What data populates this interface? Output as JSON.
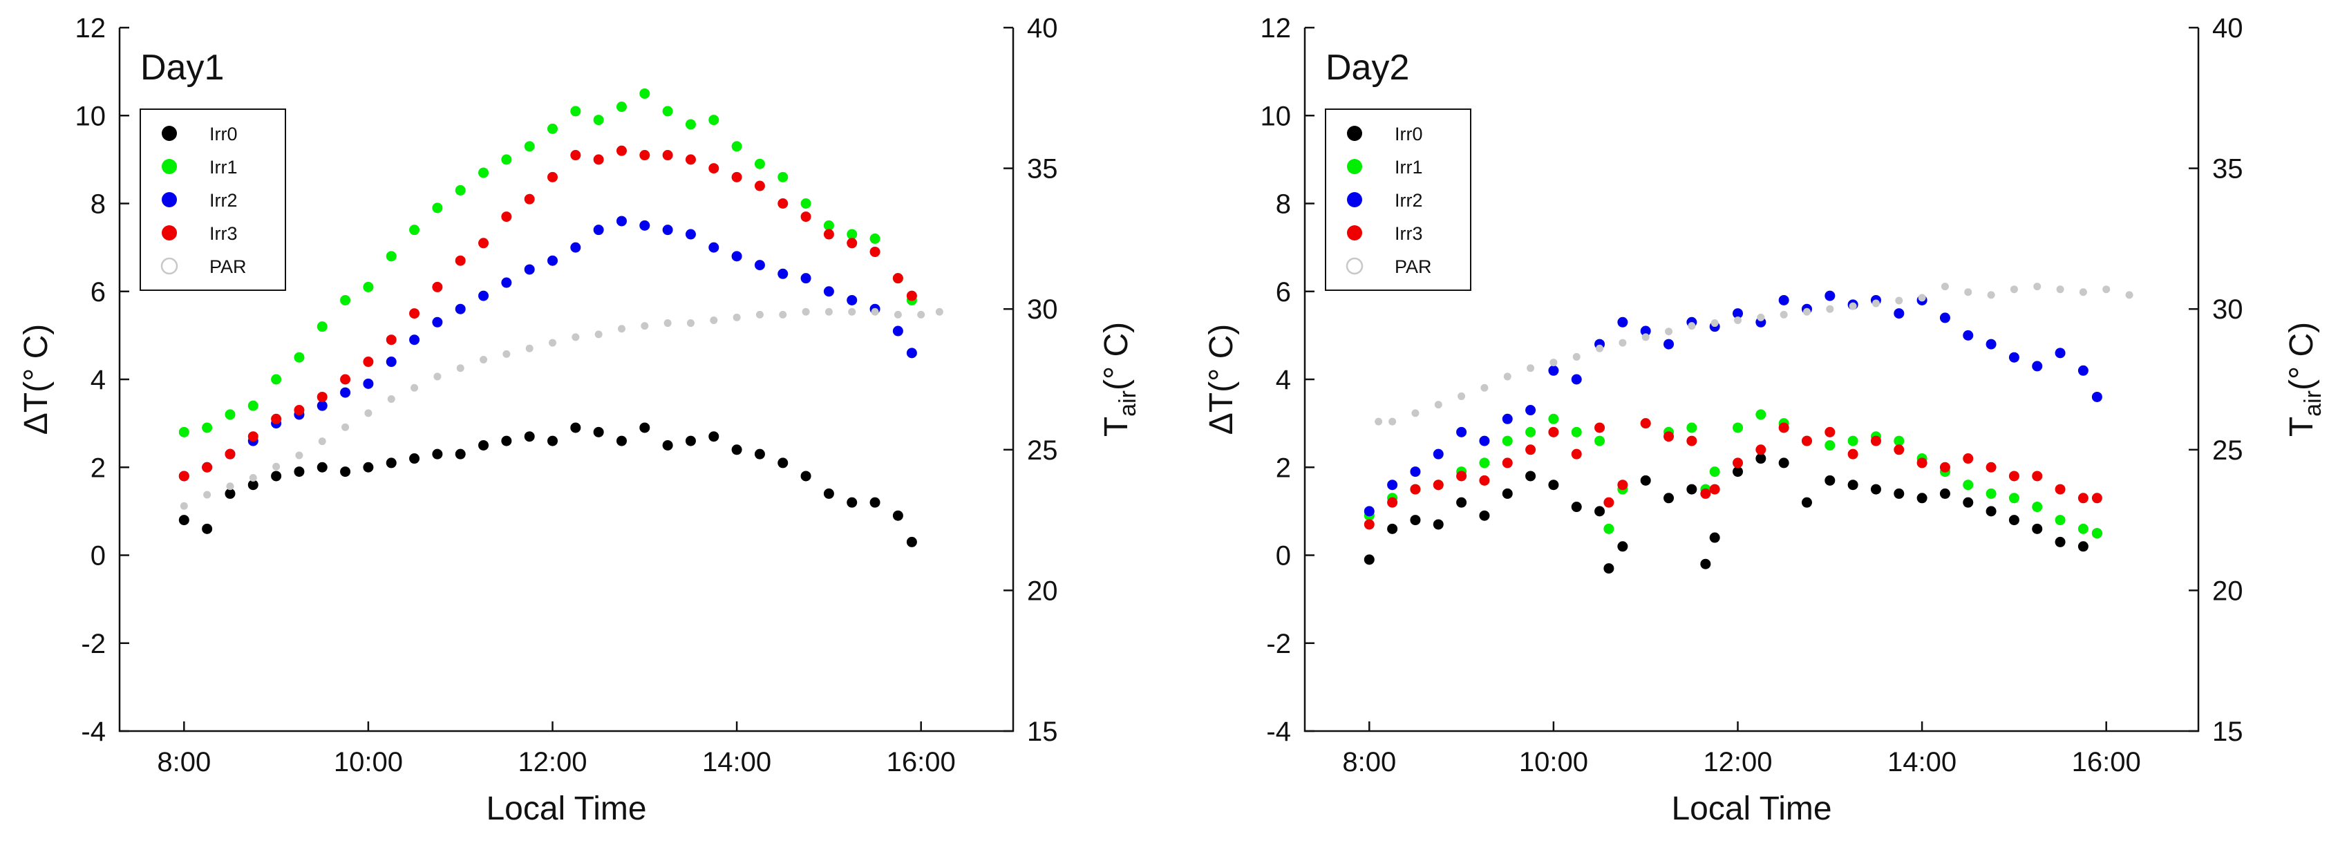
{
  "figure": {
    "xlabel": "Local Time",
    "ylabel_left": "ΔT(° C)",
    "ylabel_right": "Tair(° C)",
    "ylabel_right_base": "T",
    "ylabel_right_sub": "air",
    "ylabel_right_tail": "(° C)"
  },
  "chart_data": [
    {
      "type": "scatter",
      "title": "Day1",
      "xlabel": "Local Time",
      "ylabel": "ΔT(° C)",
      "ylabel_right": "Tair(° C)",
      "x_unit": "hours (local time)",
      "xlim": [
        7.3,
        17.0
      ],
      "ylim": [
        -4,
        12
      ],
      "ylim_right": [
        15,
        40
      ],
      "x_ticks": [
        8,
        10,
        12,
        14,
        16
      ],
      "x_tick_labels": [
        "8:00",
        "10:00",
        "12:00",
        "14:00",
        "16:00"
      ],
      "y_ticks": [
        -4,
        -2,
        0,
        2,
        4,
        6,
        8,
        10,
        12
      ],
      "y_tick_labels": [
        "-4",
        "-2",
        "0",
        "2",
        "4",
        "6",
        "8",
        "10",
        "12"
      ],
      "y_right_ticks": [
        15,
        20,
        25,
        30,
        35,
        40
      ],
      "y_right_tick_labels": [
        "15",
        "20",
        "25",
        "30",
        "35",
        "40"
      ],
      "legend_placement": "top-left",
      "grid": false,
      "series": [
        {
          "name": "Irr0",
          "color": "#000000",
          "axis": "left",
          "x": [
            8.0,
            8.25,
            8.5,
            8.75,
            9.0,
            9.25,
            9.5,
            9.75,
            10.0,
            10.25,
            10.5,
            10.75,
            11.0,
            11.25,
            11.5,
            11.75,
            12.0,
            12.25,
            12.5,
            12.75,
            13.0,
            13.25,
            13.5,
            13.75,
            14.0,
            14.25,
            14.5,
            14.75,
            15.0,
            15.25,
            15.5,
            15.75,
            15.9
          ],
          "y": [
            0.8,
            0.6,
            1.4,
            1.6,
            1.8,
            1.9,
            2.0,
            1.9,
            2.0,
            2.1,
            2.2,
            2.3,
            2.3,
            2.5,
            2.6,
            2.7,
            2.6,
            2.9,
            2.8,
            2.6,
            2.9,
            2.5,
            2.6,
            2.7,
            2.4,
            2.3,
            2.1,
            1.8,
            1.4,
            1.2,
            1.2,
            0.9,
            0.3
          ]
        },
        {
          "name": "Irr1",
          "color": "#00ee00",
          "axis": "left",
          "x": [
            8.0,
            8.25,
            8.5,
            8.75,
            9.0,
            9.25,
            9.5,
            9.75,
            10.0,
            10.25,
            10.5,
            10.75,
            11.0,
            11.25,
            11.5,
            11.75,
            12.0,
            12.25,
            12.5,
            12.75,
            13.0,
            13.25,
            13.5,
            13.75,
            14.0,
            14.25,
            14.5,
            14.75,
            15.0,
            15.25,
            15.5,
            15.75,
            15.9
          ],
          "y": [
            2.8,
            2.9,
            3.2,
            3.4,
            4.0,
            4.5,
            5.2,
            5.8,
            6.1,
            6.8,
            7.4,
            7.9,
            8.3,
            8.7,
            9.0,
            9.3,
            9.7,
            10.1,
            9.9,
            10.2,
            10.5,
            10.1,
            9.8,
            9.9,
            9.3,
            8.9,
            8.6,
            8.0,
            7.5,
            7.3,
            7.2,
            6.3,
            5.8
          ]
        },
        {
          "name": "Irr2",
          "color": "#0000ee",
          "axis": "left",
          "x": [
            8.0,
            8.25,
            8.5,
            8.75,
            9.0,
            9.25,
            9.5,
            9.75,
            10.0,
            10.25,
            10.5,
            10.75,
            11.0,
            11.25,
            11.5,
            11.75,
            12.0,
            12.25,
            12.5,
            12.75,
            13.0,
            13.25,
            13.5,
            13.75,
            14.0,
            14.25,
            14.5,
            14.75,
            15.0,
            15.25,
            15.5,
            15.75,
            15.9
          ],
          "y": [
            1.8,
            2.0,
            2.3,
            2.6,
            3.0,
            3.2,
            3.4,
            3.7,
            3.9,
            4.4,
            4.9,
            5.3,
            5.6,
            5.9,
            6.2,
            6.5,
            6.7,
            7.0,
            7.4,
            7.6,
            7.5,
            7.4,
            7.3,
            7.0,
            6.8,
            6.6,
            6.4,
            6.3,
            6.0,
            5.8,
            5.6,
            5.1,
            4.6
          ]
        },
        {
          "name": "Irr3",
          "color": "#ee0000",
          "axis": "left",
          "x": [
            8.0,
            8.25,
            8.5,
            8.75,
            9.0,
            9.25,
            9.5,
            9.75,
            10.0,
            10.25,
            10.5,
            10.75,
            11.0,
            11.25,
            11.5,
            11.75,
            12.0,
            12.25,
            12.5,
            12.75,
            13.0,
            13.25,
            13.5,
            13.75,
            14.0,
            14.25,
            14.5,
            14.75,
            15.0,
            15.25,
            15.5,
            15.75,
            15.9
          ],
          "y": [
            1.8,
            2.0,
            2.3,
            2.7,
            3.1,
            3.3,
            3.6,
            4.0,
            4.4,
            4.9,
            5.5,
            6.1,
            6.7,
            7.1,
            7.7,
            8.1,
            8.6,
            9.1,
            9.0,
            9.2,
            9.1,
            9.1,
            9.0,
            8.8,
            8.6,
            8.4,
            8.0,
            7.7,
            7.3,
            7.1,
            6.9,
            6.3,
            5.9
          ]
        },
        {
          "name": "PAR",
          "color": "#c8c8c8",
          "axis": "right",
          "x": [
            8.0,
            8.25,
            8.5,
            8.75,
            9.0,
            9.25,
            9.5,
            9.75,
            10.0,
            10.25,
            10.5,
            10.75,
            11.0,
            11.25,
            11.5,
            11.75,
            12.0,
            12.25,
            12.5,
            12.75,
            13.0,
            13.25,
            13.5,
            13.75,
            14.0,
            14.25,
            14.5,
            14.75,
            15.0,
            15.25,
            15.5,
            15.75,
            16.0,
            16.2
          ],
          "y": [
            23.0,
            23.4,
            23.7,
            24.0,
            24.4,
            24.8,
            25.3,
            25.8,
            26.3,
            26.8,
            27.2,
            27.6,
            27.9,
            28.2,
            28.4,
            28.6,
            28.8,
            29.0,
            29.1,
            29.3,
            29.4,
            29.5,
            29.5,
            29.6,
            29.7,
            29.8,
            29.8,
            29.9,
            29.9,
            29.9,
            29.9,
            29.8,
            29.8,
            29.9
          ]
        }
      ]
    },
    {
      "type": "scatter",
      "title": "Day2",
      "xlabel": "Local Time",
      "ylabel": "ΔT(° C)",
      "ylabel_right": "Tair(° C)",
      "x_unit": "hours (local time)",
      "xlim": [
        7.3,
        17.0
      ],
      "ylim": [
        -4,
        12
      ],
      "ylim_right": [
        15,
        40
      ],
      "x_ticks": [
        8,
        10,
        12,
        14,
        16
      ],
      "x_tick_labels": [
        "8:00",
        "10:00",
        "12:00",
        "14:00",
        "16:00"
      ],
      "y_ticks": [
        -4,
        -2,
        0,
        2,
        4,
        6,
        8,
        10,
        12
      ],
      "y_tick_labels": [
        "-4",
        "-2",
        "0",
        "2",
        "4",
        "6",
        "8",
        "10",
        "12"
      ],
      "y_right_ticks": [
        15,
        20,
        25,
        30,
        35,
        40
      ],
      "y_right_tick_labels": [
        "15",
        "20",
        "25",
        "30",
        "35",
        "40"
      ],
      "legend_placement": "top-left",
      "grid": false,
      "series": [
        {
          "name": "Irr0",
          "color": "#000000",
          "axis": "left",
          "x": [
            8.0,
            8.25,
            8.5,
            8.75,
            9.0,
            9.25,
            9.5,
            9.75,
            10.0,
            10.25,
            10.5,
            10.6,
            10.75,
            11.0,
            11.25,
            11.5,
            11.65,
            11.75,
            12.0,
            12.25,
            12.5,
            12.75,
            13.0,
            13.25,
            13.5,
            13.75,
            14.0,
            14.25,
            14.5,
            14.75,
            15.0,
            15.25,
            15.5,
            15.75,
            15.9
          ],
          "y": [
            -0.1,
            0.6,
            0.8,
            0.7,
            1.2,
            0.9,
            1.4,
            1.8,
            1.6,
            1.1,
            1.0,
            -0.3,
            0.2,
            1.7,
            1.3,
            1.5,
            -0.2,
            0.4,
            1.9,
            2.2,
            2.1,
            1.2,
            1.7,
            1.6,
            1.5,
            1.4,
            1.3,
            1.4,
            1.2,
            1.0,
            0.8,
            0.6,
            0.3,
            0.2,
            0.5
          ]
        },
        {
          "name": "Irr1",
          "color": "#00ee00",
          "axis": "left",
          "x": [
            8.0,
            8.25,
            8.5,
            8.75,
            9.0,
            9.25,
            9.5,
            9.75,
            10.0,
            10.25,
            10.5,
            10.6,
            10.75,
            11.0,
            11.25,
            11.5,
            11.65,
            11.75,
            12.0,
            12.25,
            12.5,
            12.75,
            13.0,
            13.25,
            13.5,
            13.75,
            14.0,
            14.25,
            14.5,
            14.75,
            15.0,
            15.25,
            15.5,
            15.75,
            15.9
          ],
          "y": [
            0.9,
            1.3,
            1.5,
            1.6,
            1.9,
            2.1,
            2.6,
            2.8,
            3.1,
            2.8,
            2.6,
            0.6,
            1.5,
            3.0,
            2.8,
            2.9,
            1.5,
            1.9,
            2.9,
            3.2,
            3.0,
            2.6,
            2.5,
            2.6,
            2.7,
            2.6,
            2.2,
            1.9,
            1.6,
            1.4,
            1.3,
            1.1,
            0.8,
            0.6,
            0.5
          ]
        },
        {
          "name": "Irr2",
          "color": "#0000ee",
          "axis": "left",
          "x": [
            8.0,
            8.25,
            8.5,
            8.75,
            9.0,
            9.25,
            9.5,
            9.75,
            10.0,
            10.25,
            10.5,
            10.75,
            11.0,
            11.25,
            11.5,
            11.75,
            12.0,
            12.25,
            12.5,
            12.75,
            13.0,
            13.25,
            13.5,
            13.75,
            14.0,
            14.25,
            14.5,
            14.75,
            15.0,
            15.25,
            15.5,
            15.75,
            15.9
          ],
          "y": [
            1.0,
            1.6,
            1.9,
            2.3,
            2.8,
            2.6,
            3.1,
            3.3,
            4.2,
            4.0,
            4.8,
            5.3,
            5.1,
            4.8,
            5.3,
            5.2,
            5.5,
            5.3,
            5.8,
            5.6,
            5.9,
            5.7,
            5.8,
            5.5,
            5.8,
            5.4,
            5.0,
            4.8,
            4.5,
            4.3,
            4.6,
            4.2,
            3.6
          ]
        },
        {
          "name": "Irr3",
          "color": "#ee0000",
          "axis": "left",
          "x": [
            8.0,
            8.25,
            8.5,
            8.75,
            9.0,
            9.25,
            9.5,
            9.75,
            10.0,
            10.25,
            10.5,
            10.6,
            10.75,
            11.0,
            11.25,
            11.5,
            11.65,
            11.75,
            12.0,
            12.25,
            12.5,
            12.75,
            13.0,
            13.25,
            13.5,
            13.75,
            14.0,
            14.25,
            14.5,
            14.75,
            15.0,
            15.25,
            15.5,
            15.75,
            15.9
          ],
          "y": [
            0.7,
            1.2,
            1.5,
            1.6,
            1.8,
            1.7,
            2.1,
            2.4,
            2.8,
            2.3,
            2.9,
            1.2,
            1.6,
            3.0,
            2.7,
            2.6,
            1.4,
            1.5,
            2.1,
            2.4,
            2.9,
            2.6,
            2.8,
            2.3,
            2.6,
            2.4,
            2.1,
            2.0,
            2.2,
            2.0,
            1.8,
            1.8,
            1.5,
            1.3,
            1.3
          ]
        },
        {
          "name": "PAR",
          "color": "#c8c8c8",
          "axis": "right",
          "x": [
            8.1,
            8.25,
            8.5,
            8.75,
            9.0,
            9.25,
            9.5,
            9.75,
            10.0,
            10.25,
            10.5,
            10.75,
            11.0,
            11.25,
            11.5,
            11.75,
            12.0,
            12.25,
            12.5,
            12.75,
            13.0,
            13.25,
            13.5,
            13.75,
            14.0,
            14.25,
            14.5,
            14.75,
            15.0,
            15.25,
            15.5,
            15.75,
            16.0,
            16.25
          ],
          "y": [
            26.0,
            26.0,
            26.3,
            26.6,
            26.9,
            27.2,
            27.6,
            27.9,
            28.1,
            28.3,
            28.6,
            28.8,
            29.0,
            29.2,
            29.4,
            29.5,
            29.6,
            29.7,
            29.8,
            29.9,
            30.0,
            30.1,
            30.2,
            30.3,
            30.4,
            30.8,
            30.6,
            30.5,
            30.7,
            30.8,
            30.7,
            30.6,
            30.7,
            30.5
          ]
        }
      ]
    }
  ]
}
